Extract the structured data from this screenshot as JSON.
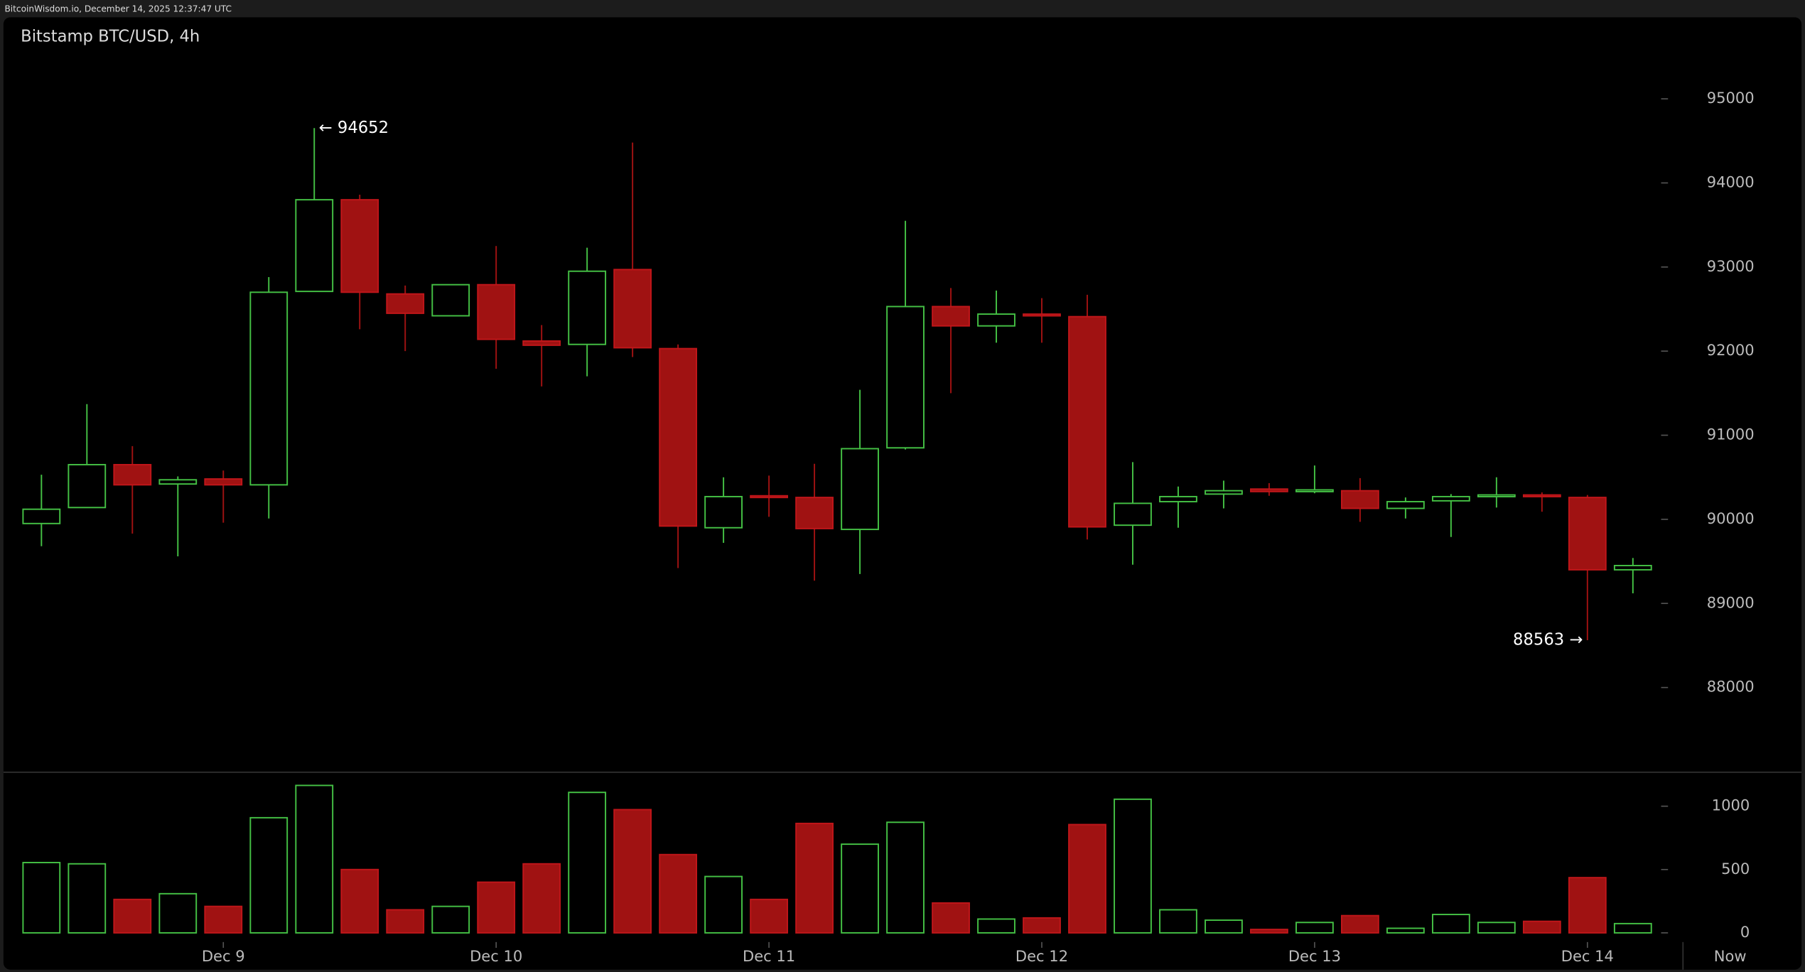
{
  "header": "BitcoinWisdom.io, December 14, 2025 12:37:47 UTC",
  "chart_data": {
    "type": "candlestick",
    "title": "Bitstamp BTC/USD, 4h",
    "categories": [
      null,
      null,
      null,
      null,
      "Dec 9",
      null,
      null,
      null,
      null,
      null,
      "Dec 10",
      null,
      null,
      null,
      null,
      null,
      "Dec 11",
      null,
      null,
      null,
      null,
      null,
      "Dec 12",
      null,
      null,
      null,
      null,
      null,
      "Dec 13",
      null,
      null,
      null,
      null,
      null,
      "Dec 14",
      null
    ],
    "x_end_label": "Now",
    "open": [
      89950,
      90140,
      90650,
      90420,
      90480,
      90410,
      92710,
      93800,
      92680,
      92420,
      92790,
      92120,
      92080,
      92970,
      92030,
      89900,
      90280,
      90260,
      89880,
      90850,
      92530,
      92300,
      92440,
      92410,
      89930,
      90210,
      90300,
      90360,
      90330,
      90340,
      90130,
      90220,
      90270,
      90290,
      90260,
      89400
    ],
    "high": [
      90530,
      91370,
      90870,
      90510,
      90580,
      92880,
      94652,
      93860,
      92780,
      92790,
      93250,
      92310,
      93230,
      94480,
      92080,
      90500,
      90520,
      90660,
      91540,
      93550,
      92750,
      92720,
      92630,
      92670,
      90680,
      90390,
      90460,
      90430,
      90640,
      90490,
      90260,
      90300,
      90500,
      90320,
      90290,
      89540
    ],
    "low": [
      89680,
      90140,
      89830,
      89560,
      89960,
      90010,
      92710,
      92260,
      92000,
      92420,
      91790,
      91580,
      91700,
      91930,
      89420,
      89720,
      90030,
      89270,
      89350,
      90830,
      91500,
      92100,
      92100,
      89760,
      89460,
      89900,
      90130,
      90280,
      90310,
      89970,
      90010,
      89790,
      90140,
      90090,
      88563,
      89120
    ],
    "close": [
      90120,
      90650,
      90410,
      90470,
      90410,
      92700,
      93800,
      92700,
      92450,
      92790,
      92140,
      92070,
      92950,
      92040,
      89920,
      90270,
      90260,
      89890,
      90840,
      92530,
      92300,
      92440,
      92420,
      89910,
      90190,
      90270,
      90340,
      90330,
      90350,
      90130,
      90210,
      90270,
      90290,
      90270,
      89400,
      89450
    ],
    "volume": [
      555,
      545,
      264,
      309,
      209,
      909,
      1164,
      500,
      182,
      209,
      400,
      545,
      1109,
      973,
      618,
      445,
      264,
      864,
      700,
      873,
      236,
      109,
      118,
      855,
      1055,
      182,
      100,
      27,
      82,
      136,
      36,
      145,
      82,
      91,
      436,
      73
    ],
    "ylim": [
      87000,
      95600
    ],
    "yticks": [
      88000,
      89000,
      90000,
      91000,
      92000,
      93000,
      94000,
      95000
    ],
    "volume_ylim": [
      0,
      1264
    ],
    "volume_yticks": [
      0,
      500,
      1000
    ],
    "max_label": "← 94652",
    "min_label": "88563 →",
    "up_color": "#44c044",
    "down_color": "#a01212"
  }
}
